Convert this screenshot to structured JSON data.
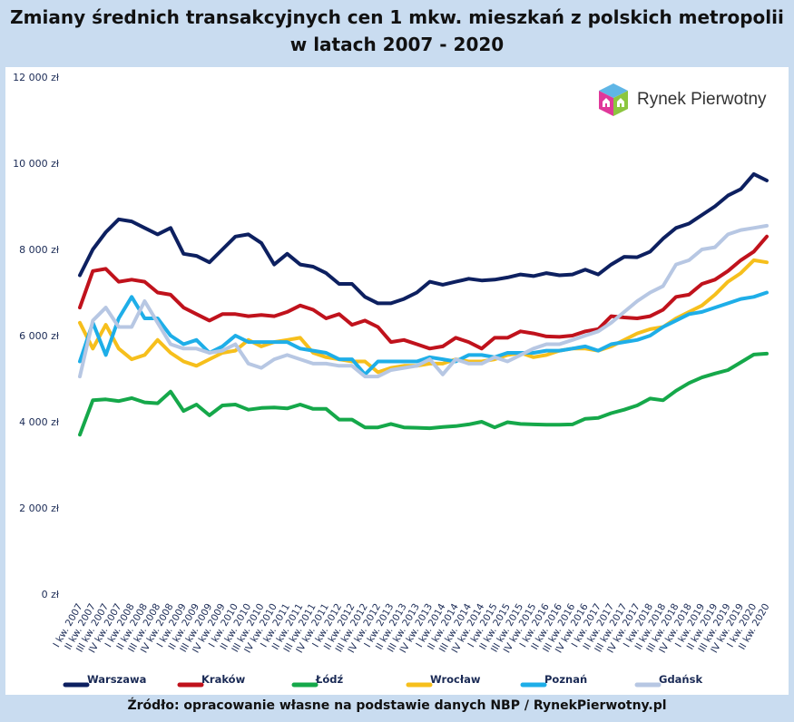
{
  "title_line1": "Zmiany średnich transakcyjnych cen 1 mkw. mieszkań z polskich metropolii",
  "title_line2": "w latach 2007 - 2020",
  "logo_text": "Rynek Pierwotny",
  "source": "Źródło: opracowanie własne na podstawie danych NBP / RynekPierwotny.pl",
  "chart_data": {
    "type": "line",
    "title": "Zmiany średnich transakcyjnych cen 1 mkw. mieszkań z polskich metropolii w latach 2007 - 2020",
    "ylim": [
      0,
      12000
    ],
    "yticks": [
      "0 zł",
      "2 000 zł",
      "4 000 zł",
      "6 000 zł",
      "8 000 zł",
      "10 000 zł",
      "12 000 zł"
    ],
    "ytick_values": [
      0,
      2000,
      4000,
      6000,
      8000,
      10000,
      12000
    ],
    "grid": false,
    "legend": "bottom",
    "categories": [
      "I kw. 2007",
      "II kw. 2007",
      "III kw. 2007",
      "IV kw. 2007",
      "I kw. 2008",
      "II kw. 2008",
      "III kw. 2008",
      "IV kw. 2008",
      "I kw. 2009",
      "II kw. 2009",
      "III kw. 2009",
      "IV kw. 2009",
      "I kw. 2010",
      "II kw. 2010",
      "III kw. 2010",
      "IV kw. 2010",
      "I kw. 2011",
      "II kw. 2011",
      "III kw. 2011",
      "IV kw. 2011",
      "I kw. 2012",
      "II kw. 2012",
      "III kw. 2012",
      "IV kw. 2012",
      "I kw. 2013",
      "II kw. 2013",
      "III kw. 2013",
      "IV kw. 2013",
      "I kw. 2014",
      "II kw. 2014",
      "III kw. 2014",
      "IV kw. 2014",
      "I kw. 2015",
      "II kw. 2015",
      "III kw. 2015",
      "IV kw. 2015",
      "I kw. 2016",
      "II kw. 2016",
      "III kw. 2016",
      "IV kw. 2016",
      "I kw. 2017",
      "II kw. 2017",
      "III kw. 2017",
      "IV kw. 2017",
      "I kw. 2018",
      "II kw. 2018",
      "III kw. 2018",
      "IV kw. 2018",
      "I kw. 2019",
      "II kw. 2019",
      "III kw. 2019",
      "IV kw. 2019",
      "I kw. 2020",
      "II kw. 2020"
    ],
    "series": [
      {
        "name": "Warszawa",
        "color": "#0d2060",
        "values": [
          7400,
          8000,
          8400,
          8700,
          8650,
          8500,
          8350,
          8500,
          7900,
          7850,
          7700,
          8000,
          8300,
          8350,
          8150,
          7650,
          7900,
          7650,
          7600,
          7450,
          7200,
          7200,
          6900,
          6750,
          6750,
          6850,
          7000,
          7250,
          7180,
          7250,
          7320,
          7280,
          7300,
          7350,
          7420,
          7380,
          7450,
          7400,
          7420,
          7530,
          7420,
          7650,
          7830,
          7820,
          7950,
          8250,
          8500,
          8600,
          8800,
          9000,
          9250,
          9400,
          9750,
          9600
        ]
      },
      {
        "name": "Kraków",
        "color": "#c0121c",
        "values": [
          6650,
          7500,
          7550,
          7250,
          7300,
          7250,
          7000,
          6950,
          6650,
          6500,
          6350,
          6500,
          6500,
          6450,
          6480,
          6450,
          6550,
          6700,
          6600,
          6400,
          6500,
          6250,
          6350,
          6200,
          5850,
          5900,
          5800,
          5700,
          5750,
          5950,
          5850,
          5700,
          5950,
          5950,
          6100,
          6050,
          5980,
          5970,
          6000,
          6100,
          6150,
          6450,
          6420,
          6400,
          6450,
          6600,
          6900,
          6950,
          7200,
          7300,
          7500,
          7750,
          7950,
          8300
        ]
      },
      {
        "name": "Łódź",
        "color": "#15a84a",
        "values": [
          3700,
          4500,
          4520,
          4480,
          4550,
          4450,
          4430,
          4700,
          4250,
          4400,
          4150,
          4380,
          4400,
          4280,
          4320,
          4330,
          4310,
          4400,
          4300,
          4300,
          4050,
          4050,
          3870,
          3870,
          3950,
          3870,
          3860,
          3850,
          3880,
          3900,
          3940,
          4000,
          3870,
          3990,
          3950,
          3940,
          3930,
          3930,
          3940,
          4070,
          4090,
          4200,
          4280,
          4380,
          4540,
          4500,
          4720,
          4900,
          5030,
          5120,
          5200,
          5380,
          5560,
          5580
        ]
      },
      {
        "name": "Wrocław",
        "color": "#f6bf1c",
        "values": [
          6300,
          5700,
          6250,
          5700,
          5450,
          5550,
          5900,
          5600,
          5400,
          5300,
          5450,
          5600,
          5650,
          5900,
          5750,
          5850,
          5900,
          5950,
          5600,
          5500,
          5450,
          5400,
          5400,
          5150,
          5250,
          5300,
          5300,
          5350,
          5350,
          5450,
          5400,
          5400,
          5450,
          5550,
          5600,
          5500,
          5550,
          5650,
          5700,
          5700,
          5650,
          5750,
          5900,
          6050,
          6150,
          6200,
          6400,
          6550,
          6700,
          6950,
          7250,
          7450,
          7750,
          7700
        ]
      },
      {
        "name": "Poznań",
        "color": "#1eaee8",
        "values": [
          5400,
          6300,
          5550,
          6400,
          6900,
          6400,
          6400,
          6000,
          5800,
          5900,
          5600,
          5750,
          6000,
          5850,
          5850,
          5850,
          5850,
          5700,
          5650,
          5600,
          5450,
          5450,
          5100,
          5400,
          5400,
          5400,
          5400,
          5500,
          5450,
          5400,
          5550,
          5550,
          5500,
          5600,
          5600,
          5600,
          5650,
          5650,
          5700,
          5750,
          5650,
          5800,
          5850,
          5900,
          6000,
          6200,
          6350,
          6500,
          6550,
          6650,
          6750,
          6850,
          6900,
          7000
        ]
      },
      {
        "name": "Gdańsk",
        "color": "#b7c7e3",
        "values": [
          5050,
          6350,
          6650,
          6200,
          6200,
          6800,
          6300,
          5800,
          5700,
          5700,
          5600,
          5650,
          5800,
          5350,
          5250,
          5450,
          5550,
          5450,
          5350,
          5350,
          5300,
          5300,
          5050,
          5050,
          5200,
          5250,
          5300,
          5450,
          5100,
          5450,
          5350,
          5350,
          5500,
          5400,
          5550,
          5700,
          5800,
          5800,
          5900,
          6000,
          6100,
          6300,
          6550,
          6800,
          7000,
          7150,
          7650,
          7750,
          8000,
          8050,
          8350,
          8450,
          8500,
          8550
        ]
      }
    ]
  }
}
